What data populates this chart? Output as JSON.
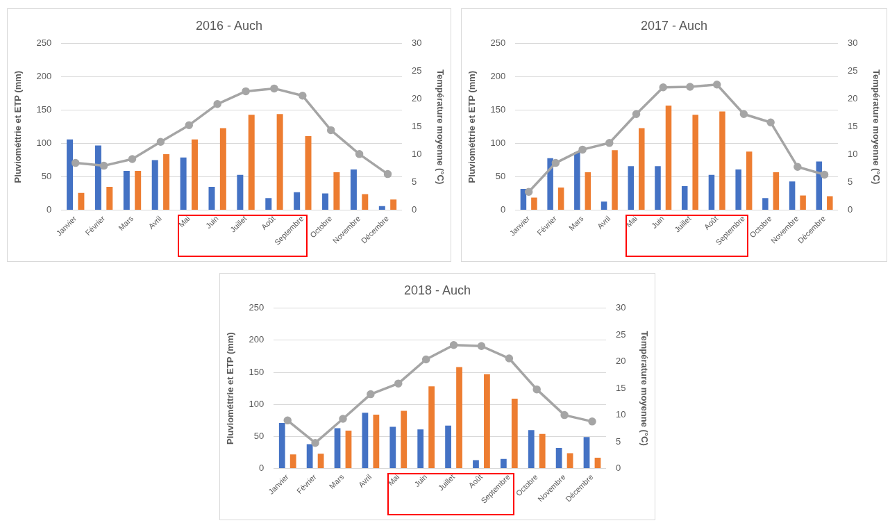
{
  "chart_data": [
    {
      "type": "bar",
      "title": "2016 - Auch",
      "ylabel": "Pluviométtrie et ETP (mm)",
      "y2label": "Température moyenne (°C)",
      "categories": [
        "Janvier",
        "Février",
        "Mars",
        "Avril",
        "Mai",
        "Juin",
        "Juillet",
        "Août",
        "Septembre",
        "Octobre",
        "Novembre",
        "Décembre"
      ],
      "series": [
        {
          "color": "#4472c4",
          "values": [
            106,
            97,
            59,
            75,
            79,
            35,
            53,
            18,
            27,
            25,
            61,
            6
          ]
        },
        {
          "color": "#ed7d31",
          "values": [
            26,
            35,
            59,
            84,
            106,
            123,
            143,
            144,
            111,
            57,
            24,
            16
          ]
        },
        {
          "type": "line",
          "axis": "y2",
          "color": "#a5a5a5",
          "values": [
            8.5,
            8.0,
            9.2,
            12.3,
            15.3,
            19.1,
            21.4,
            21.9,
            20.6,
            14.4,
            10.1,
            6.5
          ]
        }
      ],
      "ylim": [
        0,
        250
      ],
      "yticks": [
        0,
        50,
        100,
        150,
        200,
        250
      ],
      "y2lim": [
        0,
        30
      ],
      "y2ticks": [
        0,
        5,
        10,
        15,
        20,
        25,
        30
      ],
      "grid": "y",
      "marker": "circle",
      "legend": false
    },
    {
      "type": "bar",
      "title": "2017 - Auch",
      "ylabel": "Pluviométtrie et ETP (mm)",
      "y2label": "Température moyenne (°C)",
      "categories": [
        "Janvier",
        "Février",
        "Mars",
        "Avril",
        "Mai",
        "Juin",
        "Juillet",
        "Août",
        "Septembre",
        "Octobre",
        "Novembre",
        "Décembre"
      ],
      "series": [
        {
          "color": "#4472c4",
          "values": [
            32,
            78,
            87,
            13,
            66,
            66,
            36,
            53,
            61,
            18,
            43,
            73
          ]
        },
        {
          "color": "#ed7d31",
          "values": [
            19,
            34,
            57,
            90,
            123,
            157,
            143,
            148,
            88,
            57,
            22,
            21
          ]
        },
        {
          "type": "line",
          "axis": "y2",
          "color": "#a5a5a5",
          "values": [
            3.3,
            8.5,
            10.9,
            12.1,
            17.3,
            22.1,
            22.2,
            22.6,
            17.3,
            15.8,
            7.8,
            6.4
          ]
        }
      ],
      "ylim": [
        0,
        250
      ],
      "yticks": [
        0,
        50,
        100,
        150,
        200,
        250
      ],
      "y2lim": [
        0,
        30
      ],
      "y2ticks": [
        0,
        5,
        10,
        15,
        20,
        25,
        30
      ],
      "grid": "y",
      "marker": "circle",
      "legend": false
    },
    {
      "type": "bar",
      "title": "2018 - Auch",
      "ylabel": "Pluviométtrie et ETP (mm)",
      "y2label": "Température moyenne (°C)",
      "categories": [
        "Janvier",
        "Février",
        "Mars",
        "Avril",
        "Mai",
        "Juin",
        "Juillet",
        "Août",
        "Septembre",
        "Octobre",
        "Novembre",
        "Décembre"
      ],
      "series": [
        {
          "color": "#4472c4",
          "values": [
            71,
            38,
            63,
            87,
            65,
            61,
            67,
            13,
            15,
            60,
            32,
            49
          ]
        },
        {
          "color": "#ed7d31",
          "values": [
            22,
            23,
            59,
            84,
            90,
            128,
            158,
            147,
            109,
            54,
            24,
            17
          ]
        },
        {
          "type": "line",
          "axis": "y2",
          "color": "#a5a5a5",
          "values": [
            9.0,
            4.8,
            9.3,
            13.9,
            15.9,
            20.4,
            23.1,
            22.9,
            20.6,
            14.8,
            10.0,
            8.8
          ]
        }
      ],
      "ylim": [
        0,
        250
      ],
      "yticks": [
        0,
        50,
        100,
        150,
        200,
        250
      ],
      "y2lim": [
        0,
        30
      ],
      "y2ticks": [
        0,
        5,
        10,
        15,
        20,
        25,
        30
      ],
      "grid": "y",
      "marker": "circle",
      "legend": false
    }
  ]
}
